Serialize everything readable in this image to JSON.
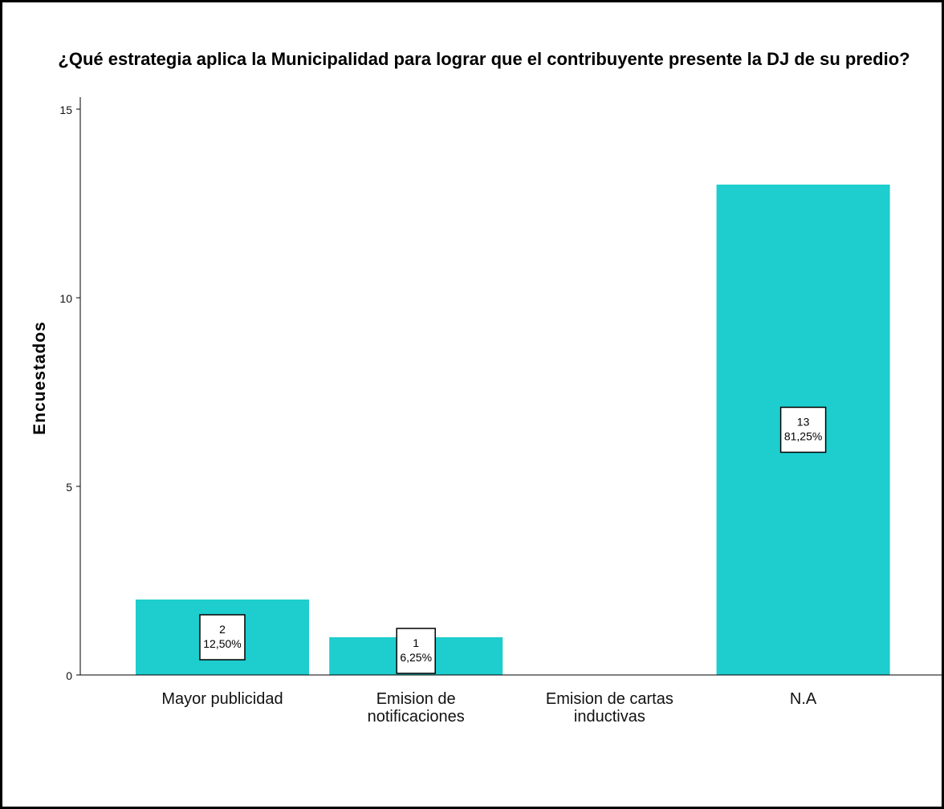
{
  "chart_data": {
    "type": "bar",
    "title": "¿Qué estrategia aplica la Municipalidad para lograr que el contribuyente presente la DJ de su predio?",
    "xlabel": "",
    "ylabel": "Encuestados",
    "categories": [
      [
        "Mayor publicidad"
      ],
      [
        "Emision de",
        "notificaciones"
      ],
      [
        "Emision de cartas",
        "inductivas"
      ],
      [
        "N.A"
      ]
    ],
    "values": [
      2,
      1,
      0,
      13
    ],
    "data_labels": [
      [
        "2",
        "12,50%"
      ],
      [
        "1",
        "6,25%"
      ],
      null,
      [
        "13",
        "81,25%"
      ]
    ],
    "ylim": [
      0,
      15
    ],
    "yticks": [
      "0",
      "5",
      "10",
      "15"
    ],
    "bar_color": "#1ecdcd",
    "grid": false,
    "legend": "none"
  }
}
